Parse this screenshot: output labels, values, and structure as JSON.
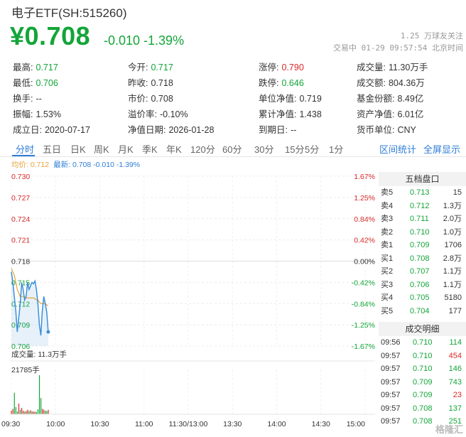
{
  "header": {
    "title": "电子ETF(SH:515260)",
    "price": "¥0.708",
    "change": "-0.010 -1.39%",
    "follow": "1.25 万球友关注",
    "trade_info": "交易中 01-29 09:57:54 北京时间"
  },
  "stats": [
    {
      "label": "最高:",
      "value": "0.717",
      "color": "green"
    },
    {
      "label": "今开:",
      "value": "0.717",
      "color": "green"
    },
    {
      "label": "涨停:",
      "value": "0.790",
      "color": "red"
    },
    {
      "label": "成交量:",
      "value": "11.30万手",
      "color": ""
    },
    {
      "label": "最低:",
      "value": "0.706",
      "color": "green"
    },
    {
      "label": "昨收:",
      "value": "0.718",
      "color": ""
    },
    {
      "label": "跌停:",
      "value": "0.646",
      "color": "green"
    },
    {
      "label": "成交额:",
      "value": "804.36万",
      "color": ""
    },
    {
      "label": "换手:",
      "value": "--",
      "color": ""
    },
    {
      "label": "市价:",
      "value": "0.708",
      "color": ""
    },
    {
      "label": "单位净值:",
      "value": "0.719",
      "color": ""
    },
    {
      "label": "基金份额:",
      "value": "8.49亿",
      "color": ""
    },
    {
      "label": "振幅:",
      "value": "1.53%",
      "color": ""
    },
    {
      "label": "溢价率:",
      "value": "-0.10%",
      "color": ""
    },
    {
      "label": "累计净值:",
      "value": "1.438",
      "color": ""
    },
    {
      "label": "资产净值:",
      "value": "6.01亿",
      "color": ""
    },
    {
      "label": "成立日:",
      "value": "2020-07-17",
      "color": ""
    },
    {
      "label": "净值日期:",
      "value": "2026-01-28",
      "color": ""
    },
    {
      "label": "到期日:",
      "value": "--",
      "color": ""
    },
    {
      "label": "货币单位:",
      "value": "CNY",
      "color": ""
    }
  ],
  "tabs": [
    "分时",
    "五日",
    "日K",
    "周K",
    "月K",
    "季K",
    "年K",
    "120分",
    "60分",
    "30分",
    "15分",
    "5分",
    "1分"
  ],
  "tabs_right": [
    "区间统计",
    "全屏显示"
  ],
  "legend": {
    "avg": "均价: 0.712",
    "latest": "最新: 0.708 -0.010 -1.39%"
  },
  "chart_data": {
    "type": "line",
    "price_ticks": [
      "0.730",
      "0.727",
      "0.724",
      "0.721",
      "0.718",
      "0.715",
      "0.712",
      "0.709",
      "0.706"
    ],
    "pct_ticks": [
      "1.67%",
      "1.25%",
      "0.84%",
      "0.42%",
      "0.00%",
      "-0.42%",
      "-0.84%",
      "-1.25%",
      "-1.67%"
    ],
    "ylim": [
      0.706,
      0.73
    ],
    "x_ticks": [
      "09:30",
      "10:00",
      "10:30",
      "11:00",
      "11:30/13:00",
      "13:30",
      "14:00",
      "14:30",
      "15:00"
    ],
    "price_series": [
      0.7165,
      0.715,
      0.713,
      0.711,
      0.708,
      0.71,
      0.712,
      0.715,
      0.714,
      0.7125,
      0.713,
      0.715,
      0.714,
      0.7145,
      0.715,
      0.7148,
      0.7152,
      0.714,
      0.712,
      0.709,
      0.7075,
      0.711,
      0.713,
      0.712,
      0.7108,
      0.708
    ],
    "avg_series": [
      0.717,
      0.7165,
      0.716,
      0.715,
      0.714,
      0.7135,
      0.713,
      0.713,
      0.713,
      0.713,
      0.7128,
      0.7128,
      0.7128,
      0.7128,
      0.7128,
      0.7128,
      0.7127,
      0.7125,
      0.7125,
      0.7122,
      0.712,
      0.712,
      0.712,
      0.712,
      0.7118,
      0.7117
    ],
    "volume_label": "成交量: 11.3万手",
    "volume_max_label": "21785手",
    "volume_series": [
      2000,
      3000,
      12000,
      4000,
      1500,
      6000,
      2500,
      3500,
      2000,
      1500,
      1800,
      2500,
      1800,
      2200,
      1600,
      1500,
      1400,
      1300,
      2800,
      21785,
      9000,
      3000,
      2500,
      2000,
      1800,
      2500
    ],
    "volume_colors": [
      "red",
      "red",
      "green",
      "green",
      "green",
      "red",
      "green",
      "red",
      "red",
      "green",
      "red",
      "red",
      "green",
      "red",
      "green",
      "red",
      "red",
      "green",
      "green",
      "green",
      "green",
      "red",
      "red",
      "green",
      "green",
      "red"
    ],
    "colors": {
      "price": "#3d8fd8",
      "avg": "#e8a33c",
      "up": "#d92a2a",
      "down": "#13a538"
    }
  },
  "order_book": {
    "title": "五档盘口",
    "rows": [
      {
        "label": "卖5",
        "price": "0.713",
        "qty": "15",
        "color": "green"
      },
      {
        "label": "卖4",
        "price": "0.712",
        "qty": "1.3万",
        "color": "green"
      },
      {
        "label": "卖3",
        "price": "0.711",
        "qty": "2.0万",
        "color": "green"
      },
      {
        "label": "卖2",
        "price": "0.710",
        "qty": "1.0万",
        "color": "green"
      },
      {
        "label": "卖1",
        "price": "0.709",
        "qty": "1706",
        "color": "green"
      },
      {
        "label": "买1",
        "price": "0.708",
        "qty": "2.8万",
        "color": "green"
      },
      {
        "label": "买2",
        "price": "0.707",
        "qty": "1.1万",
        "color": "green"
      },
      {
        "label": "买3",
        "price": "0.706",
        "qty": "1.1万",
        "color": "green"
      },
      {
        "label": "买4",
        "price": "0.705",
        "qty": "5180",
        "color": "green"
      },
      {
        "label": "买5",
        "price": "0.704",
        "qty": "177",
        "color": "green"
      }
    ]
  },
  "deals": {
    "title": "成交明细",
    "rows": [
      {
        "time": "09:56",
        "price": "0.710",
        "qty": "114",
        "qcolor": "green"
      },
      {
        "time": "09:57",
        "price": "0.710",
        "qty": "454",
        "qcolor": "red"
      },
      {
        "time": "09:57",
        "price": "0.710",
        "qty": "146",
        "qcolor": "green"
      },
      {
        "time": "09:57",
        "price": "0.709",
        "qty": "743",
        "qcolor": "green"
      },
      {
        "time": "09:57",
        "price": "0.709",
        "qty": "23",
        "qcolor": "red"
      },
      {
        "time": "09:57",
        "price": "0.708",
        "qty": "137",
        "qcolor": "green"
      },
      {
        "time": "09:57",
        "price": "0.708",
        "qty": "251",
        "qcolor": "green"
      }
    ]
  },
  "watermark": "格隆汇"
}
